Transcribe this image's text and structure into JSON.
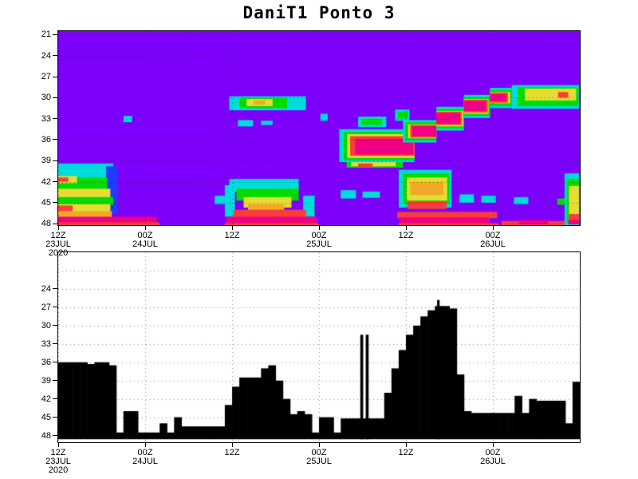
{
  "title": "DaniT1 Ponto 3",
  "palette": {
    "background": "#7d00fa",
    "blue": "#1e3cff",
    "cyan": "#00dcdc",
    "green": "#00dc00",
    "yellow": "#e6dc32",
    "orange": "#f0aa28",
    "red": "#fa3c3c",
    "magenta": "#f00082",
    "fill_black": "#000000",
    "frame": "#000000"
  },
  "time_axis": {
    "span_hours": 72,
    "ticks": [
      {
        "hour": 0,
        "labels": [
          "12Z",
          "23JUL",
          "2020"
        ]
      },
      {
        "hour": 12,
        "labels": [
          "00Z",
          "24JUL"
        ]
      },
      {
        "hour": 24,
        "labels": [
          "12Z"
        ]
      },
      {
        "hour": 36,
        "labels": [
          "00Z",
          "25JUL"
        ]
      },
      {
        "hour": 48,
        "labels": [
          "12Z"
        ]
      },
      {
        "hour": 60,
        "labels": [
          "00Z",
          "26JUL"
        ]
      }
    ]
  },
  "chart_data": [
    {
      "type": "heatmap",
      "panel": "top",
      "background": "background",
      "level_domain": [
        20.5,
        48.2
      ],
      "level_ticks": [
        21,
        24,
        27,
        30,
        33,
        36,
        39,
        42,
        45,
        48
      ],
      "grid": "dotted",
      "regions_format": [
        "color_key",
        "hour_start",
        "hour_end",
        "level_top",
        "level_bottom"
      ],
      "regions": [
        [
          "cyan",
          0,
          7.6,
          39.4,
          41.6
        ],
        [
          "blue",
          6.6,
          8.2,
          39.8,
          46.6
        ],
        [
          "green",
          0,
          6.8,
          41.4,
          43.1
        ],
        [
          "yellow",
          0,
          2.6,
          41.2,
          42.2
        ],
        [
          "red",
          0,
          1.4,
          41.4,
          42.0
        ],
        [
          "yellow",
          0,
          7.2,
          43.0,
          44.3
        ],
        [
          "green",
          0,
          7.6,
          44.2,
          45.3
        ],
        [
          "yellow",
          0,
          7.2,
          45.2,
          46.3
        ],
        [
          "red",
          0,
          2.0,
          45.4,
          46.4
        ],
        [
          "orange",
          0,
          7.4,
          46.2,
          47.1
        ],
        [
          "magenta",
          0,
          13.6,
          47.0,
          47.9
        ],
        [
          "red",
          0,
          14.0,
          47.8,
          48.2
        ],
        [
          "cyan",
          9.0,
          10.2,
          32.6,
          33.5
        ],
        [
          "cyan",
          23.6,
          34.2,
          29.8,
          31.8
        ],
        [
          "green",
          25.0,
          31.6,
          30.0,
          31.5
        ],
        [
          "yellow",
          26.0,
          29.6,
          30.2,
          31.2
        ],
        [
          "orange",
          27.0,
          28.6,
          30.4,
          31.0
        ],
        [
          "cyan",
          24.8,
          26.9,
          33.2,
          34.1
        ],
        [
          "cyan",
          28.0,
          29.6,
          33.3,
          33.9
        ],
        [
          "cyan",
          36.2,
          37.2,
          32.3,
          33.3
        ],
        [
          "cyan",
          21.6,
          23.6,
          44.0,
          45.2
        ],
        [
          "cyan",
          23.0,
          24.4,
          42.5,
          47.0
        ],
        [
          "cyan",
          33.8,
          35.4,
          44.0,
          47.0
        ],
        [
          "cyan",
          23.6,
          33.2,
          41.6,
          43.4
        ],
        [
          "green",
          24.6,
          33.2,
          43.0,
          44.7
        ],
        [
          "yellow",
          25.6,
          32.2,
          44.2,
          45.7
        ],
        [
          "orange",
          26.2,
          31.2,
          45.2,
          46.3
        ],
        [
          "red",
          24.2,
          34.2,
          46.0,
          47.3
        ],
        [
          "magenta",
          23.2,
          35.6,
          47.0,
          48.0
        ],
        [
          "red",
          23.0,
          36.0,
          47.9,
          48.2
        ],
        [
          "green",
          39.8,
          47.6,
          39.0,
          40.0
        ],
        [
          "yellow",
          40.4,
          46.6,
          39.2,
          39.8
        ],
        [
          "red",
          41.4,
          43.4,
          39.4,
          39.9
        ],
        [
          "cyan",
          38.8,
          49.2,
          34.5,
          39.2
        ],
        [
          "green",
          39.4,
          49.2,
          34.9,
          38.9
        ],
        [
          "yellow",
          39.9,
          49.2,
          35.2,
          38.6
        ],
        [
          "red",
          40.3,
          49.2,
          35.5,
          38.3
        ],
        [
          "magenta",
          41.0,
          49.0,
          35.9,
          38.1
        ],
        [
          "cyan",
          41.4,
          45.3,
          32.7,
          34.2
        ],
        [
          "green",
          41.9,
          44.7,
          33.0,
          33.9
        ],
        [
          "cyan",
          46.5,
          48.5,
          31.7,
          33.3
        ],
        [
          "green",
          46.9,
          48.3,
          32.0,
          33.0
        ],
        [
          "cyan",
          47.6,
          52.2,
          33.2,
          36.4
        ],
        [
          "green",
          47.9,
          52.2,
          33.5,
          36.1
        ],
        [
          "yellow",
          48.3,
          52.2,
          33.8,
          35.8
        ],
        [
          "red",
          48.6,
          52.2,
          33.9,
          35.7
        ],
        [
          "magenta",
          48.9,
          52.2,
          34.1,
          35.5
        ],
        [
          "cyan",
          52.2,
          56.0,
          31.3,
          34.7
        ],
        [
          "green",
          52.2,
          56.0,
          31.6,
          34.4
        ],
        [
          "yellow",
          52.2,
          55.9,
          31.9,
          34.1
        ],
        [
          "red",
          52.2,
          55.7,
          32.0,
          33.9
        ],
        [
          "magenta",
          52.2,
          55.5,
          32.2,
          33.7
        ],
        [
          "cyan",
          56.0,
          59.6,
          29.6,
          32.9
        ],
        [
          "green",
          56.0,
          59.6,
          29.9,
          32.6
        ],
        [
          "yellow",
          56.0,
          59.4,
          30.2,
          32.3
        ],
        [
          "red",
          56.0,
          59.3,
          30.3,
          32.1
        ],
        [
          "magenta",
          56.0,
          59.0,
          30.5,
          31.9
        ],
        [
          "cyan",
          59.6,
          62.6,
          28.6,
          31.5
        ],
        [
          "green",
          59.6,
          62.6,
          28.9,
          31.2
        ],
        [
          "yellow",
          59.6,
          62.4,
          29.2,
          30.8
        ],
        [
          "red",
          59.6,
          62.1,
          29.3,
          30.7
        ],
        [
          "magenta",
          59.6,
          61.8,
          29.5,
          30.5
        ],
        [
          "cyan",
          62.6,
          71.9,
          28.2,
          31.6
        ],
        [
          "green",
          63.4,
          71.8,
          28.5,
          31.2
        ],
        [
          "yellow",
          64.4,
          71.5,
          28.7,
          30.4
        ],
        [
          "red",
          69.0,
          70.4,
          29.2,
          30.0
        ],
        [
          "cyan",
          47.0,
          54.3,
          40.3,
          45.7
        ],
        [
          "green",
          47.6,
          54.0,
          40.8,
          45.2
        ],
        [
          "yellow",
          48.1,
          53.7,
          41.4,
          44.7
        ],
        [
          "orange",
          48.6,
          53.2,
          42.0,
          43.9
        ],
        [
          "red",
          48.2,
          53.6,
          44.8,
          45.9
        ],
        [
          "red",
          46.8,
          60.6,
          46.3,
          47.2
        ],
        [
          "magenta",
          47.2,
          59.6,
          47.1,
          48.0
        ],
        [
          "red",
          47.0,
          60.8,
          47.9,
          48.2
        ],
        [
          "cyan",
          55.4,
          57.4,
          43.8,
          45.0
        ],
        [
          "cyan",
          58.4,
          60.4,
          44.0,
          45.0
        ],
        [
          "cyan",
          39.0,
          41.1,
          43.2,
          44.4
        ],
        [
          "cyan",
          42.0,
          44.4,
          43.4,
          44.3
        ],
        [
          "red",
          61.2,
          71.9,
          47.6,
          48.2
        ],
        [
          "magenta",
          63.6,
          67.6,
          47.5,
          48.1
        ],
        [
          "cyan",
          62.9,
          64.9,
          44.2,
          45.2
        ],
        [
          "green",
          68.9,
          70.1,
          44.4,
          45.3
        ],
        [
          "cyan",
          69.9,
          71.9,
          40.8,
          48.2
        ],
        [
          "green",
          70.2,
          71.9,
          41.6,
          47.8
        ],
        [
          "yellow",
          70.5,
          71.9,
          42.6,
          47.2
        ],
        [
          "red",
          70.5,
          71.9,
          46.6,
          47.6
        ],
        [
          "magenta",
          70.4,
          71.9,
          47.5,
          48.1
        ]
      ]
    },
    {
      "type": "area",
      "panel": "bottom",
      "level_domain": [
        18,
        49.1
      ],
      "level_ticks": [
        24,
        27,
        30,
        33,
        36,
        39,
        42,
        45,
        48
      ],
      "grid_levels": [
        21,
        24,
        27,
        30,
        33,
        36,
        39,
        42,
        45,
        48
      ],
      "baseline_level": 48.6,
      "x_start_hour": 0,
      "x_step_hours": 1,
      "fill_color": "#000000",
      "values": [
        36,
        36,
        36,
        36,
        36.3,
        36,
        36,
        36.5,
        47.5,
        44,
        44,
        47.5,
        47.5,
        47.5,
        46,
        47.5,
        45,
        46.5,
        46.5,
        46.5,
        46.5,
        46.5,
        46.5,
        43,
        40,
        38.5,
        38.5,
        38.5,
        37,
        36.5,
        39,
        42,
        44.5,
        44,
        44.5,
        47.5,
        45,
        45,
        47.5,
        45.2,
        45.2,
        45.2,
        45.2,
        45.2,
        45.2,
        41,
        37,
        34,
        31.5,
        30,
        28.5,
        27.5,
        26.8,
        26.8,
        27.2,
        38,
        44,
        44.3,
        44.3,
        44.3,
        44.3,
        44.3,
        44.3,
        41.5,
        44.3,
        42,
        42.3,
        42.3,
        42.3,
        42.3,
        46,
        39.2
      ],
      "spikes_format": [
        "hour",
        "width_hours",
        "top_level"
      ],
      "spikes": [
        [
          41.7,
          0.4,
          31.5
        ],
        [
          42.45,
          0.4,
          31.5
        ],
        [
          52.3,
          0.35,
          25.8
        ]
      ]
    }
  ]
}
